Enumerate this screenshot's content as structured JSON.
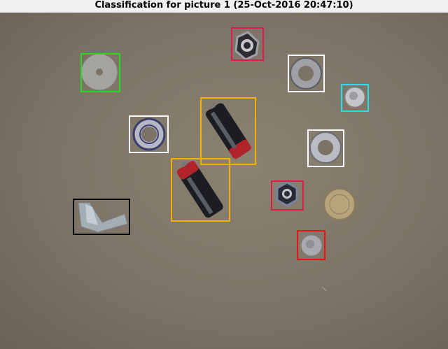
{
  "title": "Classification for picture 1 (25-Oct-2016 20:47:10)",
  "colors": {
    "washer": "#22dd22",
    "hex_nut": "#dd1a4a",
    "ring_nut": "#ffffff",
    "five_p_coin": "#22e0ee",
    "battery": "#f2b000",
    "angle_bracket": "#000000",
    "penny_coin": "#ee1111"
  },
  "objects": [
    {
      "id": "washer-1",
      "color_key": "washer",
      "icon": "washer-icon"
    },
    {
      "id": "hex-nut-1",
      "color_key": "hex_nut",
      "icon": "hex-nut-icon"
    },
    {
      "id": "ring-nut-1",
      "color_key": "ring_nut",
      "icon": "ring-nut-icon"
    },
    {
      "id": "coin-small-1",
      "color_key": "five_p_coin",
      "icon": "coin-icon"
    },
    {
      "id": "ring-nut-2",
      "color_key": "ring_nut",
      "icon": "ring-nut-icon"
    },
    {
      "id": "battery-1",
      "color_key": "battery",
      "icon": "battery-icon"
    },
    {
      "id": "ring-nut-3",
      "color_key": "ring_nut",
      "icon": "ring-nut-icon"
    },
    {
      "id": "battery-2",
      "color_key": "battery",
      "icon": "battery-icon"
    },
    {
      "id": "hex-nut-2",
      "color_key": "hex_nut",
      "icon": "hex-nut-icon"
    },
    {
      "id": "angle-bracket-1",
      "color_key": "angle_bracket",
      "icon": "angle-bracket-icon"
    },
    {
      "id": "coin-2",
      "color_key": "penny_coin",
      "icon": "coin-icon"
    }
  ]
}
